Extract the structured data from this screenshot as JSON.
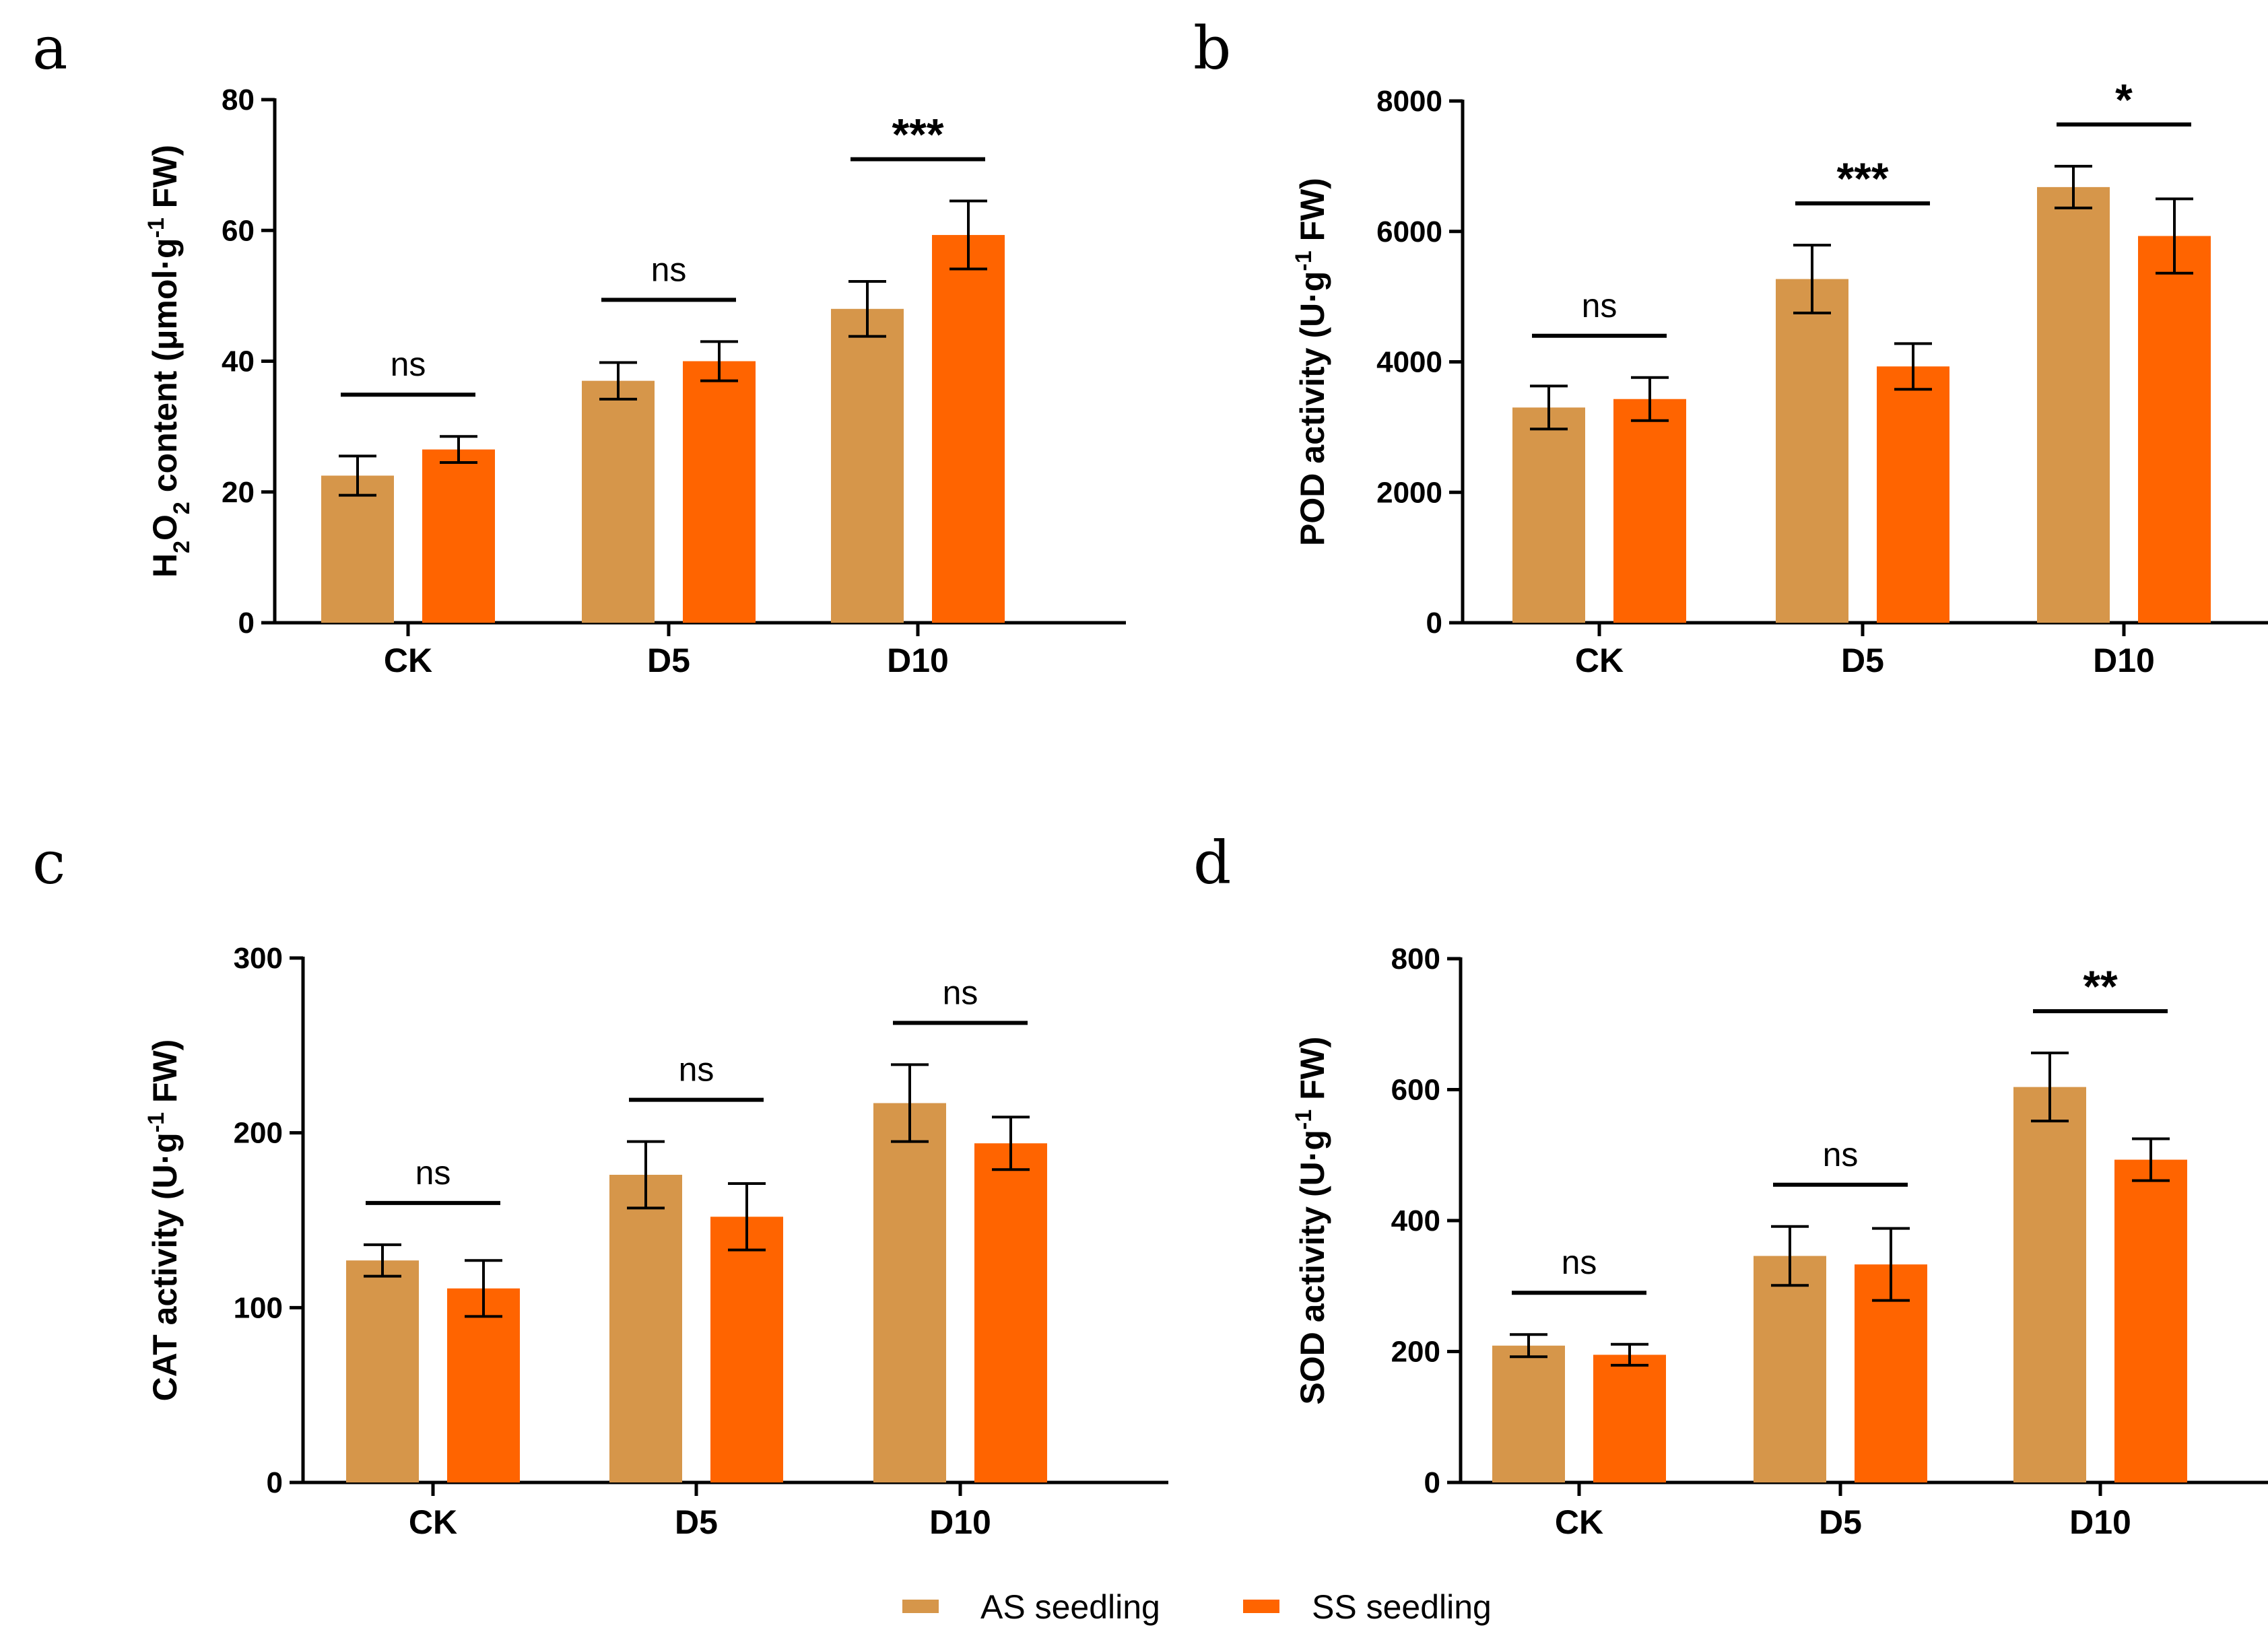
{
  "legend": [
    {
      "name": "AS seedling",
      "color": "#d6964a"
    },
    {
      "name": "SS seedling",
      "color": "#ff6400"
    }
  ],
  "chart_data": [
    {
      "panel": "a",
      "type": "bar",
      "categories": [
        "CK",
        "D5",
        "D10"
      ],
      "ylabel_parts": [
        "H",
        "2",
        "O",
        "2",
        " content (μmol·g",
        "-1",
        " FW)"
      ],
      "ylim": [
        0,
        80
      ],
      "yticks": [
        "0",
        "20",
        "40",
        "60",
        "80"
      ],
      "series": [
        {
          "name": "AS seedling",
          "values": [
            22.5,
            37.0,
            48.0
          ],
          "errors": [
            3.0,
            2.8,
            4.2
          ]
        },
        {
          "name": "SS seedling",
          "values": [
            26.5,
            40.0,
            59.3
          ],
          "errors": [
            2.0,
            3.0,
            5.2
          ]
        }
      ],
      "significance": [
        "ns",
        "ns",
        "***"
      ]
    },
    {
      "panel": "b",
      "type": "bar",
      "categories": [
        "CK",
        "D5",
        "D10"
      ],
      "ylabel_parts": [
        "POD activity (U·g",
        "-1",
        " FW)"
      ],
      "ylim": [
        0,
        8000
      ],
      "yticks": [
        "0",
        "2000",
        "4000",
        "6000",
        "8000"
      ],
      "series": [
        {
          "name": "AS seedling",
          "values": [
            3300,
            5270,
            6680
          ],
          "errors": [
            330,
            520,
            320
          ]
        },
        {
          "name": "SS seedling",
          "values": [
            3430,
            3930,
            5930
          ],
          "errors": [
            330,
            350,
            570
          ]
        }
      ],
      "significance": [
        "ns",
        "***",
        "*"
      ]
    },
    {
      "panel": "c",
      "type": "bar",
      "categories": [
        "CK",
        "D5",
        "D10"
      ],
      "ylabel_parts": [
        "CAT activity (U·g",
        "-1",
        " FW)"
      ],
      "ylim": [
        0,
        300
      ],
      "yticks": [
        "0",
        "100",
        "200",
        "300"
      ],
      "series": [
        {
          "name": "AS seedling",
          "values": [
            127,
            176,
            217
          ],
          "errors": [
            9,
            19,
            22
          ]
        },
        {
          "name": "SS seedling",
          "values": [
            111,
            152,
            194
          ],
          "errors": [
            16,
            19,
            15
          ]
        }
      ],
      "significance": [
        "ns",
        "ns",
        "ns"
      ]
    },
    {
      "panel": "d",
      "type": "bar",
      "categories": [
        "CK",
        "D5",
        "D10"
      ],
      "ylabel_parts": [
        "SOD activity (U·g",
        "-1",
        " FW)"
      ],
      "ylim": [
        0,
        800
      ],
      "yticks": [
        "0",
        "200",
        "400",
        "600",
        "800"
      ],
      "series": [
        {
          "name": "AS seedling",
          "values": [
            209,
            346,
            604
          ],
          "errors": [
            17,
            45,
            52
          ]
        },
        {
          "name": "SS seedling",
          "values": [
            195,
            333,
            493
          ],
          "errors": [
            16,
            55,
            32
          ]
        }
      ],
      "significance": [
        "ns",
        "ns",
        "**"
      ]
    }
  ]
}
